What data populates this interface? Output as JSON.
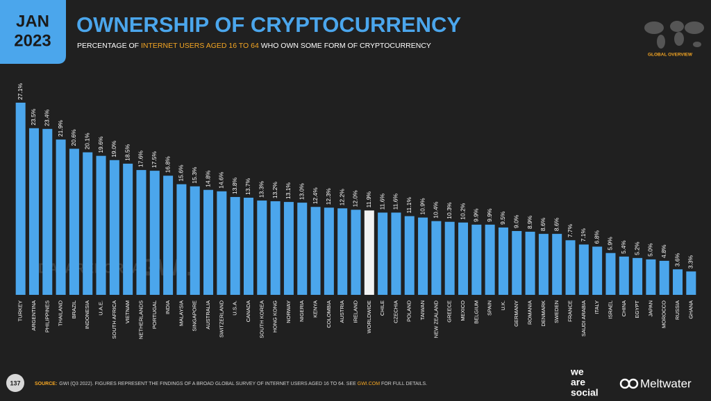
{
  "header": {
    "month": "JAN",
    "year": "2023",
    "title": "OWNERSHIP OF CRYPTOCURRENCY",
    "subtitle": [
      "PERCENTAGE OF ",
      "INTERNET USERS AGED 16 TO 64",
      " WHO OWN SOME FORM OF CRYPTOCURRENCY"
    ],
    "badge": "GLOBAL OVERVIEW"
  },
  "watermarks": [
    "DATAREPORTAL",
    "GWI."
  ],
  "chart_data": {
    "type": "bar",
    "categories": [
      "TURKEY",
      "ARGENTINA",
      "PHILIPPINES",
      "THAILAND",
      "BRAZIL",
      "INDONESIA",
      "U.A.E.",
      "SOUTH AFRICA",
      "VIETNAM",
      "NETHERLANDS",
      "PORTUGAL",
      "INDIA",
      "MALAYSIA",
      "SINGAPORE",
      "AUSTRALIA",
      "SWITZERLAND",
      "U.S.A.",
      "CANADA",
      "SOUTH KOREA",
      "HONG KONG",
      "NORWAY",
      "NIGERIA",
      "KENYA",
      "COLOMBIA",
      "AUSTRIA",
      "IRELAND",
      "WORLDWIDE",
      "CHILE",
      "CZECHIA",
      "POLAND",
      "TAIWAN",
      "NEW ZEALAND",
      "GREECE",
      "MEXICO",
      "BELGIUM",
      "SPAIN",
      "U.K.",
      "GERMANY",
      "ROMANIA",
      "DENMARK",
      "SWEDEN",
      "FRANCE",
      "SAUDI ARABIA",
      "ITALY",
      "ISRAEL",
      "CHINA",
      "EGYPT",
      "JAPAN",
      "MOROCCO",
      "RUSSIA",
      "GHANA"
    ],
    "values": [
      27.1,
      23.5,
      23.4,
      21.9,
      20.6,
      20.1,
      19.6,
      19.0,
      18.5,
      17.6,
      17.5,
      16.8,
      15.6,
      15.3,
      14.8,
      14.6,
      13.8,
      13.7,
      13.3,
      13.2,
      13.1,
      13.0,
      12.4,
      12.3,
      12.2,
      12.0,
      11.9,
      11.6,
      11.6,
      11.1,
      10.9,
      10.4,
      10.3,
      10.2,
      9.9,
      9.9,
      9.5,
      9.0,
      8.9,
      8.6,
      8.6,
      7.7,
      7.1,
      6.8,
      5.9,
      5.4,
      5.2,
      5.0,
      4.8,
      3.6,
      3.3
    ],
    "value_labels": [
      "27.1%",
      "23.5%",
      "23.4%",
      "21.9%",
      "20.6%",
      "20.1%",
      "19.6%",
      "19.0%",
      "18.5%",
      "17.6%",
      "17.5%",
      "16.8%",
      "15.6%",
      "15.3%",
      "14.8%",
      "14.6%",
      "13.8%",
      "13.7%",
      "13.3%",
      "13.2%",
      "13.1%",
      "13.0%",
      "12.4%",
      "12.3%",
      "12.2%",
      "12.0%",
      "11.9%",
      "11.6%",
      "11.6%",
      "11.1%",
      "10.9%",
      "10.4%",
      "10.3%",
      "10.2%",
      "9.9%",
      "9.9%",
      "9.5%",
      "9.0%",
      "8.9%",
      "8.6%",
      "8.6%",
      "7.7%",
      "7.1%",
      "6.8%",
      "5.9%",
      "5.4%",
      "5.2%",
      "5.0%",
      "4.8%",
      "3.6%",
      "3.3%"
    ],
    "color": "#4ba6ec",
    "highlight_color": "#f2f2f2",
    "highlight_index": 26
  },
  "footer": {
    "page": "137",
    "source_label": "SOURCE:",
    "source": [
      "GWI (Q3 2022). FIGURES REPRESENT THE FINDINGS OF A BROAD GLOBAL SURVEY OF INTERNET USERS AGED 16 TO 64. SEE ",
      "GWI.COM",
      " FOR FULL DETAILS."
    ],
    "logos": [
      "we",
      "are",
      "social",
      "Meltwater"
    ]
  }
}
